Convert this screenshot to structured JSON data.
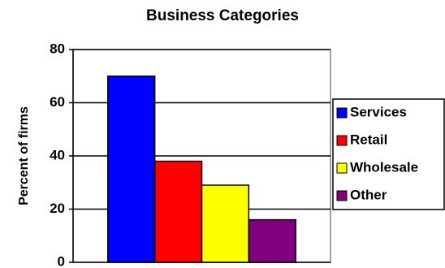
{
  "chart_data": {
    "type": "bar",
    "title": "Business Categories",
    "y_label": "Percent of firms",
    "categories": [
      null
    ],
    "series": [
      {
        "name": "Services",
        "color": "#0000ff",
        "values": [
          70
        ]
      },
      {
        "name": "Retail",
        "color": "#ff0000",
        "values": [
          38
        ]
      },
      {
        "name": "Wholesale",
        "color": "#ffff00",
        "values": [
          29
        ]
      },
      {
        "name": "Other",
        "color": "#800080",
        "values": [
          16
        ]
      }
    ],
    "ylim": [
      0,
      80
    ],
    "yticks": [
      0,
      20,
      40,
      60,
      80
    ],
    "grid": true,
    "legend": "right"
  }
}
